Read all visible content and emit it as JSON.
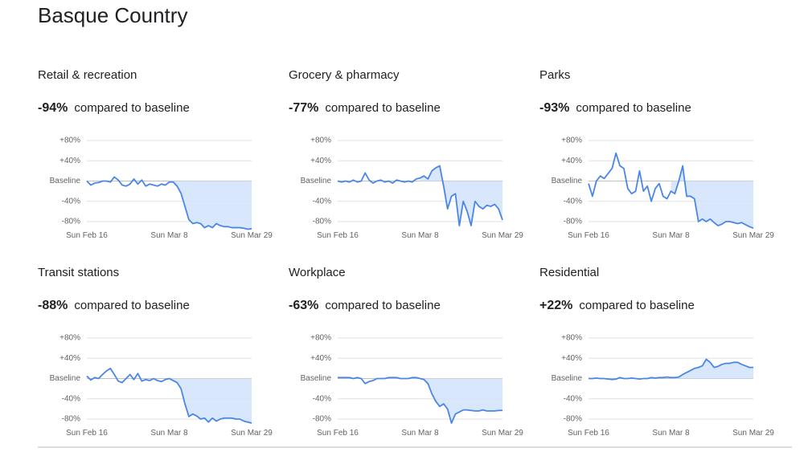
{
  "title": "Basque Country",
  "chart_data": [
    {
      "type": "line",
      "title": "Retail & recreation",
      "change": "-94%",
      "comparison": "compared to baseline",
      "categories": [
        "Sun Feb 16",
        null,
        null,
        null,
        null,
        null,
        null,
        null,
        null,
        null,
        null,
        null,
        null,
        null,
        null,
        null,
        null,
        null,
        null,
        null,
        null,
        "Sun Mar 8",
        null,
        null,
        null,
        null,
        null,
        null,
        null,
        null,
        null,
        null,
        null,
        null,
        null,
        null,
        null,
        null,
        null,
        null,
        null,
        null,
        "Sun Mar 29"
      ],
      "series": [
        {
          "name": "Retail & recreation",
          "color": "#4a86e8",
          "values": [
            0,
            -8,
            -4,
            -3,
            0,
            0,
            -2,
            8,
            2,
            -8,
            -10,
            -6,
            4,
            -6,
            2,
            -10,
            -6,
            -8,
            -10,
            -6,
            -8,
            -2,
            -2,
            -10,
            -24,
            -50,
            -76,
            -84,
            -82,
            -84,
            -92,
            -88,
            -92,
            -84,
            -88,
            -90,
            -90,
            -92,
            -92,
            -92,
            -93,
            -95,
            -94
          ]
        }
      ],
      "ylim": [
        -95,
        90
      ],
      "yticks": [
        {
          "value": 80,
          "label": "+80%"
        },
        {
          "value": 40,
          "label": "+40%"
        },
        {
          "value": 0,
          "label": "Baseline"
        },
        {
          "value": -40,
          "label": "-40%"
        },
        {
          "value": -80,
          "label": "-80%"
        }
      ],
      "grid": true
    },
    {
      "type": "line",
      "title": "Grocery & pharmacy",
      "change": "-77%",
      "comparison": "compared to baseline",
      "categories": [
        "Sun Feb 16",
        null,
        null,
        null,
        null,
        null,
        null,
        null,
        null,
        null,
        null,
        null,
        null,
        null,
        null,
        null,
        null,
        null,
        null,
        null,
        null,
        "Sun Mar 8",
        null,
        null,
        null,
        null,
        null,
        null,
        null,
        null,
        null,
        null,
        null,
        null,
        null,
        null,
        null,
        null,
        null,
        null,
        null,
        null,
        "Sun Mar 29"
      ],
      "series": [
        {
          "name": "Grocery & pharmacy",
          "color": "#4a86e8",
          "values": [
            0,
            -2,
            0,
            -2,
            2,
            -2,
            0,
            16,
            2,
            -4,
            0,
            2,
            -2,
            0,
            -4,
            2,
            0,
            -2,
            0,
            -2,
            4,
            6,
            10,
            4,
            20,
            26,
            30,
            -10,
            -55,
            -30,
            -25,
            -88,
            -40,
            -60,
            -88,
            -40,
            -50,
            -55,
            -48,
            -50,
            -46,
            -55,
            -77
          ]
        }
      ],
      "ylim": [
        -95,
        90
      ],
      "yticks": [
        {
          "value": 80,
          "label": "+80%"
        },
        {
          "value": 40,
          "label": "+40%"
        },
        {
          "value": 0,
          "label": "Baseline"
        },
        {
          "value": -40,
          "label": "-40%"
        },
        {
          "value": -80,
          "label": "-80%"
        }
      ],
      "grid": true
    },
    {
      "type": "line",
      "title": "Parks",
      "change": "-93%",
      "comparison": "compared to baseline",
      "categories": [
        "Sun Feb 16",
        null,
        null,
        null,
        null,
        null,
        null,
        null,
        null,
        null,
        null,
        null,
        null,
        null,
        null,
        null,
        null,
        null,
        null,
        null,
        null,
        "Sun Mar 8",
        null,
        null,
        null,
        null,
        null,
        null,
        null,
        null,
        null,
        null,
        null,
        null,
        null,
        null,
        null,
        null,
        null,
        null,
        null,
        null,
        "Sun Mar 29"
      ],
      "series": [
        {
          "name": "Parks",
          "color": "#4a86e8",
          "values": [
            -5,
            -30,
            0,
            10,
            5,
            15,
            25,
            55,
            30,
            25,
            -15,
            -25,
            -20,
            20,
            -20,
            -10,
            -40,
            -15,
            -5,
            -30,
            -35,
            -20,
            -25,
            0,
            30,
            -30,
            -30,
            -35,
            -80,
            -75,
            -80,
            -75,
            -82,
            -88,
            -85,
            -80,
            -80,
            -82,
            -84,
            -82,
            -86,
            -90,
            -93
          ]
        }
      ],
      "ylim": [
        -95,
        90
      ],
      "yticks": [
        {
          "value": 80,
          "label": "+80%"
        },
        {
          "value": 40,
          "label": "+40%"
        },
        {
          "value": 0,
          "label": "Baseline"
        },
        {
          "value": -40,
          "label": "-40%"
        },
        {
          "value": -80,
          "label": "-80%"
        }
      ],
      "grid": true
    },
    {
      "type": "line",
      "title": "Transit stations",
      "change": "-88%",
      "comparison": "compared to baseline",
      "categories": [
        "Sun Feb 16",
        null,
        null,
        null,
        null,
        null,
        null,
        null,
        null,
        null,
        null,
        null,
        null,
        null,
        null,
        null,
        null,
        null,
        null,
        null,
        null,
        "Sun Mar 8",
        null,
        null,
        null,
        null,
        null,
        null,
        null,
        null,
        null,
        null,
        null,
        null,
        null,
        null,
        null,
        null,
        null,
        null,
        null,
        null,
        "Sun Mar 29"
      ],
      "series": [
        {
          "name": "Transit stations",
          "color": "#4a86e8",
          "values": [
            5,
            -3,
            2,
            0,
            8,
            15,
            20,
            8,
            -5,
            -8,
            0,
            8,
            -2,
            10,
            -5,
            -2,
            -4,
            0,
            -4,
            -6,
            -2,
            0,
            -4,
            -8,
            -20,
            -50,
            -75,
            -70,
            -74,
            -80,
            -78,
            -86,
            -78,
            -84,
            -80,
            -78,
            -78,
            -78,
            -80,
            -80,
            -84,
            -86,
            -88
          ]
        }
      ],
      "ylim": [
        -95,
        90
      ],
      "yticks": [
        {
          "value": 80,
          "label": "+80%"
        },
        {
          "value": 40,
          "label": "+40%"
        },
        {
          "value": 0,
          "label": "Baseline"
        },
        {
          "value": -40,
          "label": "-40%"
        },
        {
          "value": -80,
          "label": "-80%"
        }
      ],
      "grid": true
    },
    {
      "type": "line",
      "title": "Workplace",
      "change": "-63%",
      "comparison": "compared to baseline",
      "categories": [
        "Sun Feb 16",
        null,
        null,
        null,
        null,
        null,
        null,
        null,
        null,
        null,
        null,
        null,
        null,
        null,
        null,
        null,
        null,
        null,
        null,
        null,
        null,
        "Sun Mar 8",
        null,
        null,
        null,
        null,
        null,
        null,
        null,
        null,
        null,
        null,
        null,
        null,
        null,
        null,
        null,
        null,
        null,
        null,
        null,
        null,
        "Sun Mar 29"
      ],
      "series": [
        {
          "name": "Workplace",
          "color": "#4a86e8",
          "values": [
            2,
            2,
            2,
            2,
            0,
            2,
            0,
            -10,
            -6,
            -4,
            0,
            0,
            0,
            2,
            2,
            2,
            0,
            0,
            0,
            2,
            2,
            0,
            -2,
            -10,
            -30,
            -45,
            -55,
            -50,
            -60,
            -88,
            -70,
            -66,
            -62,
            -62,
            -63,
            -64,
            -64,
            -62,
            -64,
            -64,
            -64,
            -63,
            -63
          ]
        }
      ],
      "ylim": [
        -95,
        90
      ],
      "yticks": [
        {
          "value": 80,
          "label": "+80%"
        },
        {
          "value": 40,
          "label": "+40%"
        },
        {
          "value": 0,
          "label": "Baseline"
        },
        {
          "value": -40,
          "label": "-40%"
        },
        {
          "value": -80,
          "label": "-80%"
        }
      ],
      "grid": true
    },
    {
      "type": "line",
      "title": "Residential",
      "change": "+22%",
      "comparison": "compared to baseline",
      "categories": [
        "Sun Feb 16",
        null,
        null,
        null,
        null,
        null,
        null,
        null,
        null,
        null,
        null,
        null,
        null,
        null,
        null,
        null,
        null,
        null,
        null,
        null,
        null,
        "Sun Mar 8",
        null,
        null,
        null,
        null,
        null,
        null,
        null,
        null,
        null,
        null,
        null,
        null,
        null,
        null,
        null,
        null,
        null,
        null,
        null,
        null,
        "Sun Mar 29"
      ],
      "series": [
        {
          "name": "Residential",
          "color": "#4a86e8",
          "values": [
            0,
            0,
            1,
            0,
            0,
            -1,
            -2,
            -1,
            2,
            0,
            0,
            1,
            0,
            -1,
            0,
            0,
            2,
            1,
            2,
            2,
            3,
            2,
            2,
            3,
            8,
            12,
            16,
            20,
            22,
            25,
            38,
            32,
            22,
            24,
            28,
            30,
            30,
            32,
            32,
            28,
            25,
            22,
            22
          ]
        }
      ],
      "ylim": [
        -95,
        90
      ],
      "yticks": [
        {
          "value": 80,
          "label": "+80%"
        },
        {
          "value": 40,
          "label": "+40%"
        },
        {
          "value": 0,
          "label": "Baseline"
        },
        {
          "value": -40,
          "label": "-40%"
        },
        {
          "value": -80,
          "label": "-80%"
        }
      ],
      "grid": true
    }
  ]
}
